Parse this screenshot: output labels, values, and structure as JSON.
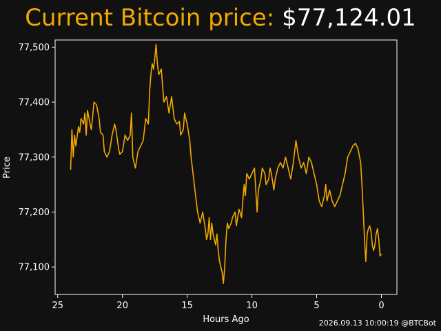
{
  "header": {
    "label": "Current Bitcoin price:",
    "price": "$77,124.01"
  },
  "footer": {
    "timestamp": "2026.09.13 10:00:19 @BTCBot"
  },
  "colors": {
    "background": "#111111",
    "line": "#f2a900",
    "text": "#ffffff"
  },
  "chart_data": {
    "type": "line",
    "title": "",
    "xlabel": "Hours Ago",
    "ylabel": "Price",
    "xlim": [
      25.2,
      -1.2
    ],
    "ylim": [
      77050,
      77513
    ],
    "x_inverted": true,
    "x_ticks": [
      25,
      20,
      15,
      10,
      5,
      0
    ],
    "y_ticks": [
      77100,
      77200,
      77300,
      77400,
      77500
    ],
    "y_tick_labels": [
      "77,100",
      "77,200",
      "77,300",
      "77,400",
      "77,500"
    ],
    "grid": false,
    "series": [
      {
        "values_xy": [
          [
            24.0,
            77277
          ],
          [
            23.9,
            77350
          ],
          [
            23.8,
            77300
          ],
          [
            23.7,
            77340
          ],
          [
            23.6,
            77320
          ],
          [
            23.4,
            77355
          ],
          [
            23.3,
            77345
          ],
          [
            23.2,
            77370
          ],
          [
            23.0,
            77360
          ],
          [
            22.9,
            77380
          ],
          [
            22.8,
            77340
          ],
          [
            22.7,
            77385
          ],
          [
            22.5,
            77360
          ],
          [
            22.4,
            77350
          ],
          [
            22.2,
            77400
          ],
          [
            22.0,
            77395
          ],
          [
            21.8,
            77370
          ],
          [
            21.7,
            77345
          ],
          [
            21.5,
            77340
          ],
          [
            21.4,
            77310
          ],
          [
            21.2,
            77300
          ],
          [
            21.0,
            77310
          ],
          [
            20.8,
            77340
          ],
          [
            20.6,
            77360
          ],
          [
            20.5,
            77350
          ],
          [
            20.3,
            77315
          ],
          [
            20.2,
            77305
          ],
          [
            20.0,
            77310
          ],
          [
            19.8,
            77340
          ],
          [
            19.6,
            77330
          ],
          [
            19.4,
            77340
          ],
          [
            19.3,
            77380
          ],
          [
            19.2,
            77300
          ],
          [
            19.0,
            77280
          ],
          [
            18.8,
            77310
          ],
          [
            18.6,
            77320
          ],
          [
            18.4,
            77330
          ],
          [
            18.2,
            77370
          ],
          [
            18.0,
            77360
          ],
          [
            17.9,
            77420
          ],
          [
            17.8,
            77450
          ],
          [
            17.7,
            77470
          ],
          [
            17.6,
            77460
          ],
          [
            17.5,
            77480
          ],
          [
            17.4,
            77505
          ],
          [
            17.3,
            77470
          ],
          [
            17.2,
            77450
          ],
          [
            17.0,
            77460
          ],
          [
            16.9,
            77430
          ],
          [
            16.8,
            77400
          ],
          [
            16.6,
            77410
          ],
          [
            16.4,
            77380
          ],
          [
            16.2,
            77410
          ],
          [
            16.0,
            77370
          ],
          [
            15.8,
            77360
          ],
          [
            15.6,
            77365
          ],
          [
            15.5,
            77340
          ],
          [
            15.3,
            77350
          ],
          [
            15.2,
            77380
          ],
          [
            15.0,
            77360
          ],
          [
            14.8,
            77330
          ],
          [
            14.7,
            77300
          ],
          [
            14.6,
            77280
          ],
          [
            14.5,
            77260
          ],
          [
            14.4,
            77240
          ],
          [
            14.3,
            77220
          ],
          [
            14.2,
            77200
          ],
          [
            14.0,
            77180
          ],
          [
            13.8,
            77200
          ],
          [
            13.6,
            77170
          ],
          [
            13.5,
            77150
          ],
          [
            13.4,
            77160
          ],
          [
            13.3,
            77190
          ],
          [
            13.2,
            77150
          ],
          [
            13.1,
            77180
          ],
          [
            13.0,
            77160
          ],
          [
            12.9,
            77150
          ],
          [
            12.8,
            77140
          ],
          [
            12.7,
            77160
          ],
          [
            12.6,
            77130
          ],
          [
            12.5,
            77110
          ],
          [
            12.4,
            77100
          ],
          [
            12.3,
            77090
          ],
          [
            12.2,
            77070
          ],
          [
            12.1,
            77100
          ],
          [
            12.0,
            77150
          ],
          [
            11.9,
            77180
          ],
          [
            11.8,
            77170
          ],
          [
            11.6,
            77180
          ],
          [
            11.5,
            77190
          ],
          [
            11.3,
            77200
          ],
          [
            11.2,
            77175
          ],
          [
            11.0,
            77205
          ],
          [
            10.8,
            77190
          ],
          [
            10.7,
            77220
          ],
          [
            10.6,
            77250
          ],
          [
            10.5,
            77230
          ],
          [
            10.4,
            77270
          ],
          [
            10.2,
            77260
          ],
          [
            10.0,
            77270
          ],
          [
            9.8,
            77280
          ],
          [
            9.6,
            77200
          ],
          [
            9.5,
            77240
          ],
          [
            9.3,
            77260
          ],
          [
            9.2,
            77280
          ],
          [
            9.0,
            77270
          ],
          [
            8.9,
            77250
          ],
          [
            8.7,
            77260
          ],
          [
            8.6,
            77280
          ],
          [
            8.5,
            77270
          ],
          [
            8.3,
            77240
          ],
          [
            8.2,
            77260
          ],
          [
            8.0,
            77280
          ],
          [
            7.8,
            77290
          ],
          [
            7.6,
            77280
          ],
          [
            7.4,
            77300
          ],
          [
            7.2,
            77280
          ],
          [
            7.0,
            77260
          ],
          [
            6.8,
            77290
          ],
          [
            6.6,
            77330
          ],
          [
            6.4,
            77300
          ],
          [
            6.2,
            77280
          ],
          [
            6.0,
            77290
          ],
          [
            5.8,
            77270
          ],
          [
            5.6,
            77300
          ],
          [
            5.4,
            77290
          ],
          [
            5.2,
            77270
          ],
          [
            5.0,
            77250
          ],
          [
            4.8,
            77220
          ],
          [
            4.6,
            77210
          ],
          [
            4.4,
            77230
          ],
          [
            4.3,
            77250
          ],
          [
            4.2,
            77220
          ],
          [
            4.0,
            77240
          ],
          [
            3.8,
            77220
          ],
          [
            3.6,
            77210
          ],
          [
            3.4,
            77220
          ],
          [
            3.2,
            77230
          ],
          [
            3.0,
            77250
          ],
          [
            2.8,
            77270
          ],
          [
            2.6,
            77300
          ],
          [
            2.4,
            77310
          ],
          [
            2.2,
            77320
          ],
          [
            2.0,
            77325
          ],
          [
            1.8,
            77315
          ],
          [
            1.6,
            77290
          ],
          [
            1.5,
            77250
          ],
          [
            1.4,
            77200
          ],
          [
            1.3,
            77150
          ],
          [
            1.2,
            77110
          ],
          [
            1.1,
            77160
          ],
          [
            1.0,
            77170
          ],
          [
            0.9,
            77175
          ],
          [
            0.8,
            77165
          ],
          [
            0.7,
            77140
          ],
          [
            0.6,
            77130
          ],
          [
            0.5,
            77140
          ],
          [
            0.4,
            77160
          ],
          [
            0.3,
            77170
          ],
          [
            0.2,
            77150
          ],
          [
            0.1,
            77120
          ],
          [
            0.0,
            77124
          ]
        ]
      }
    ]
  }
}
